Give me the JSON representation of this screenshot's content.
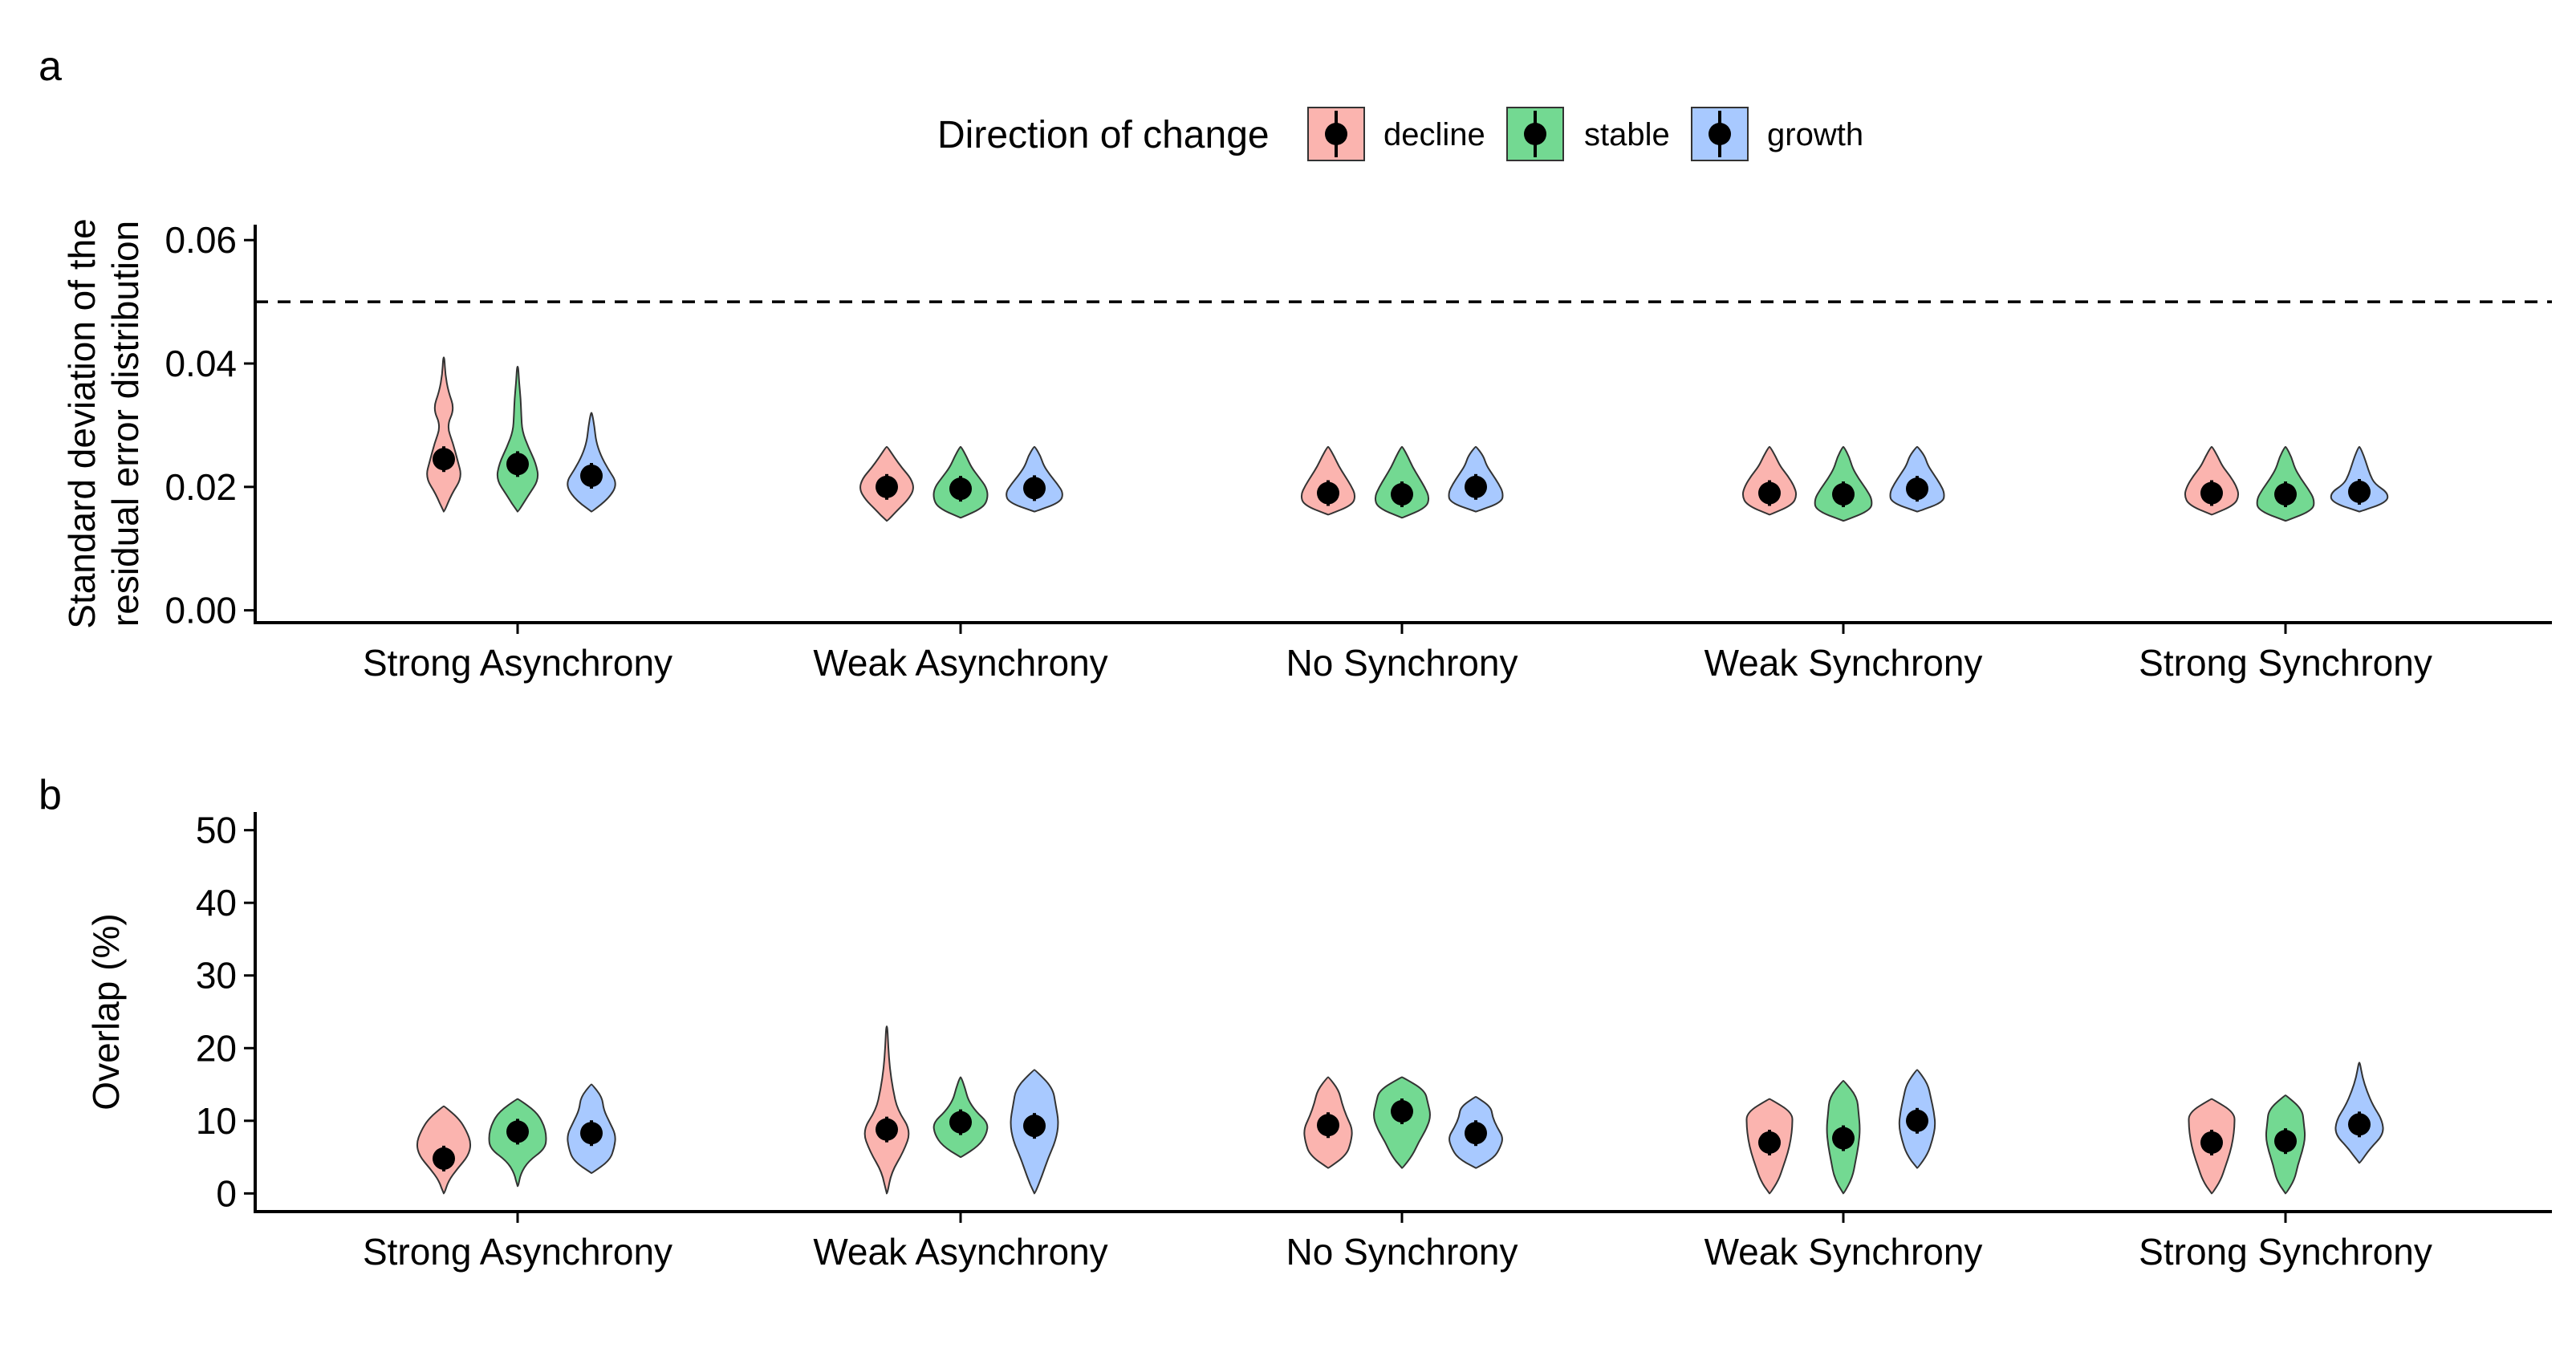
{
  "legend": {
    "title": "Direction of change",
    "entries": [
      {
        "label": "decline",
        "color": "#F8766D"
      },
      {
        "label": "stable",
        "color": "#00BA38"
      },
      {
        "label": "growth",
        "color": "#619CFF"
      }
    ]
  },
  "chart_data": [
    {
      "panel": "a",
      "type": "violin",
      "ylabel": [
        "Standard deviation of the",
        "residual error distribution"
      ],
      "xlabel": "",
      "categories": [
        "Strong Asynchrony",
        "Weak Asynchrony",
        "No Synchrony",
        "Weak Synchrony",
        "Strong Synchrony"
      ],
      "yticks": [
        "0.00",
        "0.02",
        "0.04",
        "0.06"
      ],
      "ylim": [
        -0.002,
        0.0625
      ],
      "reference_line": {
        "y": 0.05,
        "style": "dashed"
      },
      "series": [
        {
          "name": "decline",
          "means": [
            0.0245,
            0.02,
            0.019,
            0.019,
            0.019
          ],
          "ranges": [
            [
              0.016,
              0.041
            ],
            [
              0.0145,
              0.0265
            ],
            [
              0.0155,
              0.0265
            ],
            [
              0.0155,
              0.0265
            ],
            [
              0.0155,
              0.0265
            ]
          ],
          "widths": [
            [
              0.25,
              0.6,
              0.45,
              0.3,
              0.1,
              0.35,
              0.15,
              0.05
            ],
            [
              0.35,
              0.7,
              0.9,
              0.8,
              0.5,
              0.25
            ],
            [
              0.8,
              0.9,
              0.75,
              0.55,
              0.35,
              0.2
            ],
            [
              0.75,
              0.9,
              0.8,
              0.6,
              0.35,
              0.2
            ],
            [
              0.75,
              0.9,
              0.8,
              0.6,
              0.35,
              0.2
            ]
          ]
        },
        {
          "name": "stable",
          "means": [
            0.0237,
            0.0197,
            0.0188,
            0.0188,
            0.0188
          ],
          "ranges": [
            [
              0.016,
              0.0395
            ],
            [
              0.015,
              0.0265
            ],
            [
              0.015,
              0.0265
            ],
            [
              0.0145,
              0.0265
            ],
            [
              0.0145,
              0.0265
            ]
          ],
          "widths": [
            [
              0.35,
              0.7,
              0.6,
              0.35,
              0.15,
              0.12,
              0.1,
              0.05
            ],
            [
              0.75,
              0.9,
              0.85,
              0.6,
              0.35,
              0.2
            ],
            [
              0.8,
              0.9,
              0.75,
              0.55,
              0.35,
              0.2
            ],
            [
              0.9,
              0.95,
              0.75,
              0.5,
              0.3,
              0.2
            ],
            [
              0.9,
              0.95,
              0.75,
              0.5,
              0.3,
              0.2
            ]
          ]
        },
        {
          "name": "growth",
          "means": [
            0.0218,
            0.0198,
            0.02,
            0.0197,
            0.0192
          ],
          "ranges": [
            [
              0.016,
              0.032
            ],
            [
              0.016,
              0.0265
            ],
            [
              0.016,
              0.0265
            ],
            [
              0.016,
              0.0265
            ],
            [
              0.016,
              0.0265
            ]
          ],
          "widths": [
            [
              0.6,
              0.85,
              0.55,
              0.3,
              0.15,
              0.1
            ],
            [
              0.85,
              0.95,
              0.75,
              0.5,
              0.3,
              0.2
            ],
            [
              0.85,
              0.9,
              0.75,
              0.55,
              0.35,
              0.25
            ],
            [
              0.85,
              0.9,
              0.75,
              0.55,
              0.35,
              0.25
            ],
            [
              0.9,
              0.95,
              0.5,
              0.35,
              0.25,
              0.15
            ]
          ]
        }
      ]
    },
    {
      "panel": "b",
      "type": "violin",
      "ylabel": [
        "Overlap (%)"
      ],
      "xlabel": "",
      "categories": [
        "Strong Asynchrony",
        "Weak Asynchrony",
        "No Synchrony",
        "Weak Synchrony",
        "Strong Synchrony"
      ],
      "yticks": [
        "0",
        "10",
        "20",
        "30",
        "40",
        "50"
      ],
      "ylim": [
        -2.5,
        52.5
      ],
      "series": [
        {
          "name": "decline",
          "means": [
            4.8,
            8.8,
            9.4,
            7.0,
            7.0
          ],
          "ranges": [
            [
              0,
              12
            ],
            [
              0,
              23
            ],
            [
              3.5,
              16
            ],
            [
              0,
              13
            ],
            [
              0,
              13
            ]
          ],
          "widths": [
            [
              0.15,
              0.45,
              0.8,
              0.9,
              0.75,
              0.5
            ],
            [
              0.15,
              0.55,
              0.8,
              0.35,
              0.2,
              0.1,
              0.05
            ],
            [
              0.6,
              0.75,
              0.8,
              0.6,
              0.45,
              0.35
            ],
            [
              0.3,
              0.45,
              0.6,
              0.7,
              0.75,
              0.75
            ],
            [
              0.3,
              0.45,
              0.6,
              0.7,
              0.75,
              0.75
            ]
          ]
        },
        {
          "name": "stable",
          "means": [
            8.5,
            9.8,
            11.3,
            7.6,
            7.2
          ],
          "ranges": [
            [
              1,
              13
            ],
            [
              5,
              16
            ],
            [
              3.5,
              16
            ],
            [
              0,
              15.5
            ],
            [
              0,
              13.5
            ]
          ],
          "widths": [
            [
              0.1,
              0.35,
              0.9,
              0.95,
              0.85,
              0.6
            ],
            [
              0.6,
              0.85,
              0.9,
              0.5,
              0.25,
              0.15
            ],
            [
              0.35,
              0.55,
              0.8,
              0.95,
              0.85,
              0.75
            ],
            [
              0.3,
              0.4,
              0.5,
              0.55,
              0.5,
              0.45
            ],
            [
              0.3,
              0.4,
              0.55,
              0.65,
              0.6,
              0.55
            ]
          ]
        },
        {
          "name": "growth",
          "means": [
            8.3,
            9.3,
            8.3,
            10.0,
            9.5
          ],
          "ranges": [
            [
              2.8,
              15
            ],
            [
              0,
              17
            ],
            [
              3.5,
              13.3
            ],
            [
              3.5,
              17
            ],
            [
              4.2,
              18
            ]
          ],
          "widths": [
            [
              0.6,
              0.75,
              0.8,
              0.6,
              0.4,
              0.35
            ],
            [
              0.25,
              0.45,
              0.7,
              0.8,
              0.7,
              0.6
            ],
            [
              0.6,
              0.8,
              0.9,
              0.7,
              0.55,
              0.5
            ],
            [
              0.35,
              0.5,
              0.6,
              0.55,
              0.45,
              0.35
            ],
            [
              0.35,
              0.8,
              0.75,
              0.45,
              0.25,
              0.1
            ]
          ]
        }
      ]
    }
  ]
}
